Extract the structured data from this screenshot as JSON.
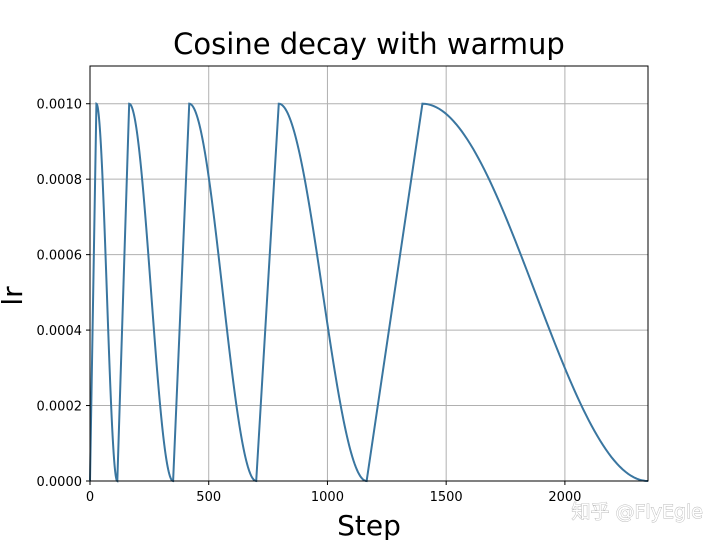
{
  "chart_data": {
    "type": "line",
    "title": "Cosine decay with warmup",
    "xlabel": "Step",
    "ylabel": "lr",
    "xlim": [
      0,
      2350
    ],
    "ylim": [
      0,
      0.0011
    ],
    "x_ticks": [
      0,
      500,
      1000,
      1500,
      2000
    ],
    "x_tick_labels": [
      "0",
      "500",
      "1000",
      "1500",
      "2000"
    ],
    "y_ticks": [
      0.0,
      0.0002,
      0.0004,
      0.0006,
      0.0008,
      0.001
    ],
    "y_tick_labels": [
      "0.0000",
      "0.0002",
      "0.0004",
      "0.0006",
      "0.0008",
      "0.0010"
    ],
    "grid": true,
    "color": "#3a76a0",
    "series": [
      {
        "cycles": [
          {
            "start": 0,
            "peak": 27,
            "end": 115
          },
          {
            "start": 115,
            "peak": 165,
            "end": 350
          },
          {
            "start": 350,
            "peak": 418,
            "end": 700
          },
          {
            "start": 700,
            "peak": 795,
            "end": 1165
          },
          {
            "start": 1165,
            "peak": 1400,
            "end": 2350
          }
        ],
        "max_lr": 0.001,
        "min_lr": 0.0
      }
    ]
  },
  "watermark": "知乎 @FlyEgle"
}
